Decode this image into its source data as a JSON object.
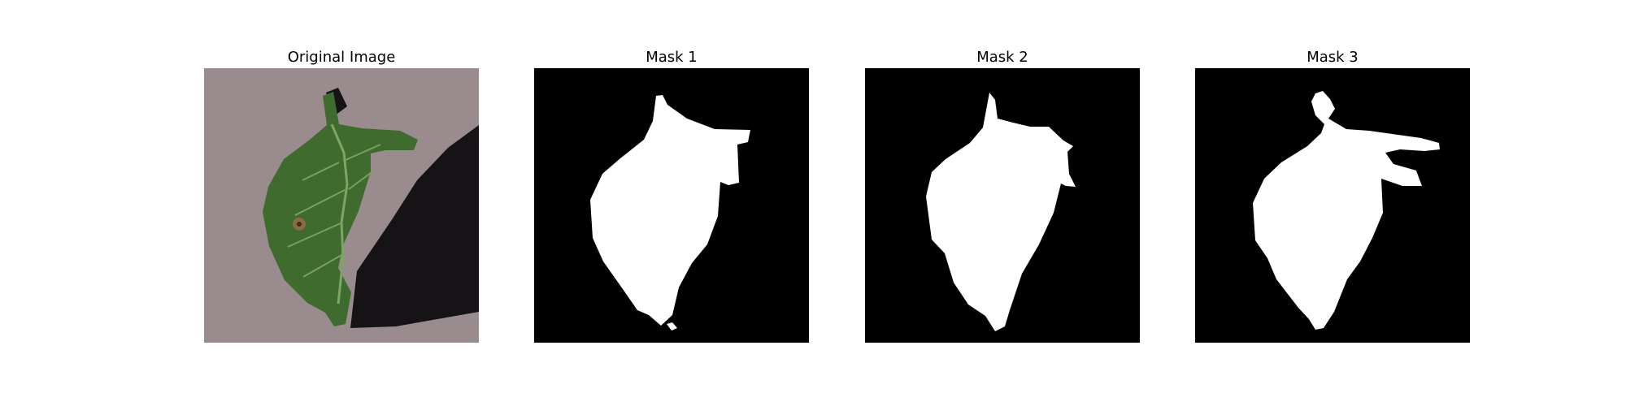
{
  "figure": {
    "panels": [
      {
        "title": "Original Image",
        "kind": "photo"
      },
      {
        "title": "Mask 1",
        "kind": "mask"
      },
      {
        "title": "Mask 2",
        "kind": "mask"
      },
      {
        "title": "Mask 3",
        "kind": "mask"
      }
    ]
  },
  "colors": {
    "background": "#ffffff",
    "mask_background": "#000000",
    "mask_foreground": "#ffffff",
    "photo_background": "#9a8b8e",
    "leaf_dark": "#2f4a25",
    "leaf_mid": "#3f6b2f",
    "leaf_light": "#5b8a43",
    "shadow": "#151315",
    "lesion": "#8a6a47"
  }
}
